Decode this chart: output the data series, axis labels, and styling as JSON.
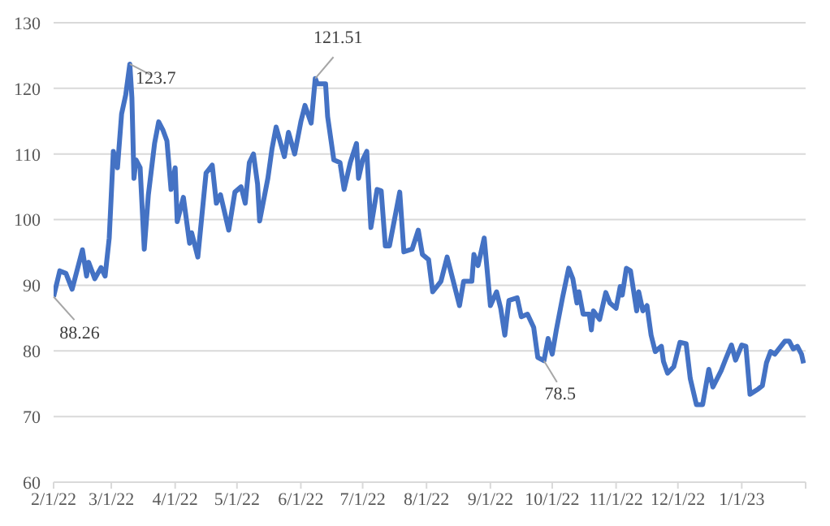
{
  "chart_data": {
    "type": "line",
    "x": [
      "2022-02-01",
      "2022-02-04",
      "2022-02-07",
      "2022-02-10",
      "2022-02-15",
      "2022-02-17",
      "2022-02-18",
      "2022-02-21",
      "2022-02-24",
      "2022-02-26",
      "2022-02-28",
      "2022-03-02",
      "2022-03-04",
      "2022-03-06",
      "2022-03-08",
      "2022-03-10",
      "2022-03-11",
      "2022-03-12",
      "2022-03-13",
      "2022-03-15",
      "2022-03-17",
      "2022-03-19",
      "2022-03-22",
      "2022-03-24",
      "2022-03-26",
      "2022-03-28",
      "2022-03-30",
      "2022-04-01",
      "2022-04-02",
      "2022-04-05",
      "2022-04-08",
      "2022-04-09",
      "2022-04-12",
      "2022-04-16",
      "2022-04-19",
      "2022-04-21",
      "2022-04-23",
      "2022-04-27",
      "2022-04-30",
      "2022-05-03",
      "2022-05-05",
      "2022-05-07",
      "2022-05-09",
      "2022-05-11",
      "2022-05-12",
      "2022-05-16",
      "2022-05-18",
      "2022-05-20",
      "2022-05-24",
      "2022-05-26",
      "2022-05-29",
      "2022-06-01",
      "2022-06-03",
      "2022-06-06",
      "2022-06-08",
      "2022-06-09",
      "2022-06-13",
      "2022-06-14",
      "2022-06-17",
      "2022-06-20",
      "2022-06-22",
      "2022-06-25",
      "2022-06-28",
      "2022-06-29",
      "2022-07-01",
      "2022-07-03",
      "2022-07-05",
      "2022-07-08",
      "2022-07-10",
      "2022-07-12",
      "2022-07-14",
      "2022-07-19",
      "2022-07-21",
      "2022-07-25",
      "2022-07-28",
      "2022-07-30",
      "2022-08-02",
      "2022-08-04",
      "2022-08-08",
      "2022-08-11",
      "2022-08-14",
      "2022-08-17",
      "2022-08-19",
      "2022-08-23",
      "2022-08-24",
      "2022-08-26",
      "2022-08-29",
      "2022-09-01",
      "2022-09-04",
      "2022-09-06",
      "2022-09-08",
      "2022-09-10",
      "2022-09-14",
      "2022-09-16",
      "2022-09-19",
      "2022-09-22",
      "2022-09-24",
      "2022-09-27",
      "2022-09-29",
      "2022-10-01",
      "2022-10-03",
      "2022-10-06",
      "2022-10-09",
      "2022-10-11",
      "2022-10-13",
      "2022-10-14",
      "2022-10-16",
      "2022-10-19",
      "2022-10-20",
      "2022-10-21",
      "2022-10-24",
      "2022-10-27",
      "2022-10-29",
      "2022-11-01",
      "2022-11-03",
      "2022-11-04",
      "2022-11-06",
      "2022-11-08",
      "2022-11-11",
      "2022-11-12",
      "2022-11-14",
      "2022-11-16",
      "2022-11-18",
      "2022-11-20",
      "2022-11-23",
      "2022-11-24",
      "2022-11-26",
      "2022-11-29",
      "2022-12-02",
      "2022-12-05",
      "2022-12-07",
      "2022-12-10",
      "2022-12-13",
      "2022-12-16",
      "2022-12-18",
      "2022-12-22",
      "2022-12-24",
      "2022-12-27",
      "2022-12-29",
      "2023-01-01",
      "2023-01-03",
      "2023-01-05",
      "2023-01-09",
      "2023-01-11",
      "2023-01-13",
      "2023-01-15",
      "2023-01-17",
      "2023-01-19",
      "2023-01-22",
      "2023-01-24",
      "2023-01-26",
      "2023-01-28",
      "2023-01-30",
      "2023-01-31"
    ],
    "series": [
      {
        "color": "#4472c4",
        "values": [
          88.26,
          92.2,
          91.8,
          89.4,
          95.4,
          91.4,
          93.5,
          91,
          92.7,
          91.4,
          97.2,
          110.4,
          107.9,
          116.1,
          119,
          123.7,
          118.6,
          106.3,
          109.1,
          107.9,
          95.5,
          103.8,
          111.6,
          114.9,
          113.7,
          112,
          104.6,
          107.9,
          99.7,
          103.4,
          96.4,
          98,
          94.3,
          107.1,
          108.3,
          102.5,
          103.8,
          98.4,
          104.2,
          105,
          102.5,
          108.7,
          110,
          105.4,
          99.8,
          106.3,
          110.8,
          114.1,
          109.6,
          113.3,
          110,
          114.9,
          117.4,
          114.7,
          121.51,
          120.7,
          120.7,
          115.7,
          109.1,
          108.7,
          104.6,
          108.7,
          111.6,
          106.3,
          109.1,
          110.4,
          98.8,
          104.6,
          104.4,
          96,
          96,
          104.2,
          95.1,
          95.5,
          98.4,
          94.7,
          93.9,
          89,
          90.6,
          94.3,
          90.6,
          86.9,
          90.6,
          90.6,
          94.7,
          93,
          97.2,
          86.9,
          89,
          86.5,
          82.4,
          87.7,
          88.1,
          85.2,
          85.6,
          83.6,
          79,
          78.5,
          81.9,
          79.5,
          83.2,
          88.1,
          92.6,
          91,
          87.3,
          89,
          85.6,
          85.6,
          83.2,
          86.1,
          84.8,
          88.9,
          87.3,
          86.5,
          89.8,
          88.5,
          92.6,
          92.2,
          86.1,
          89,
          86.1,
          86.9,
          82.4,
          79.9,
          80.7,
          78.4,
          76.6,
          77.6,
          81.3,
          81.1,
          75.8,
          71.8,
          71.8,
          77.2,
          74.5,
          77,
          78.6,
          80.9,
          78.6,
          80.9,
          80.7,
          73.4,
          74.2,
          74.7,
          78.2,
          79.9,
          79.5,
          80.3,
          81.5,
          81.5,
          80.3,
          80.7,
          79.5,
          78.1
        ]
      }
    ],
    "xlim": [
      "2022-02-01",
      "2023-02-01"
    ],
    "xticks": [
      {
        "value": "2022-02-01",
        "label": "2/1/22"
      },
      {
        "value": "2022-03-01",
        "label": "3/1/22"
      },
      {
        "value": "2022-04-01",
        "label": "4/1/22"
      },
      {
        "value": "2022-05-01",
        "label": "5/1/22"
      },
      {
        "value": "2022-06-01",
        "label": "6/1/22"
      },
      {
        "value": "2022-07-01",
        "label": "7/1/22"
      },
      {
        "value": "2022-08-01",
        "label": "8/1/22"
      },
      {
        "value": "2022-09-01",
        "label": "9/1/22"
      },
      {
        "value": "2022-10-01",
        "label": "10/1/22"
      },
      {
        "value": "2022-11-01",
        "label": "11/1/22"
      },
      {
        "value": "2022-12-01",
        "label": "12/1/22"
      },
      {
        "value": "2023-01-01",
        "label": "1/1/23"
      },
      {
        "value": "2023-02-01",
        "label": null
      }
    ],
    "ylim": [
      60,
      130
    ],
    "yticks": [
      60,
      70,
      80,
      90,
      100,
      110,
      120,
      130
    ],
    "grid": "y",
    "legend": false,
    "marker": "none",
    "line_style": "solid",
    "annotations": [
      {
        "text": "88.26",
        "x": "2022-02-01",
        "y": 88.26
      },
      {
        "text": "123.7",
        "x": "2022-03-10",
        "y": 123.7
      },
      {
        "text": "121.51",
        "x": "2022-06-08",
        "y": 121.51
      },
      {
        "text": "78.5",
        "x": "2022-09-27",
        "y": 78.5
      }
    ]
  }
}
